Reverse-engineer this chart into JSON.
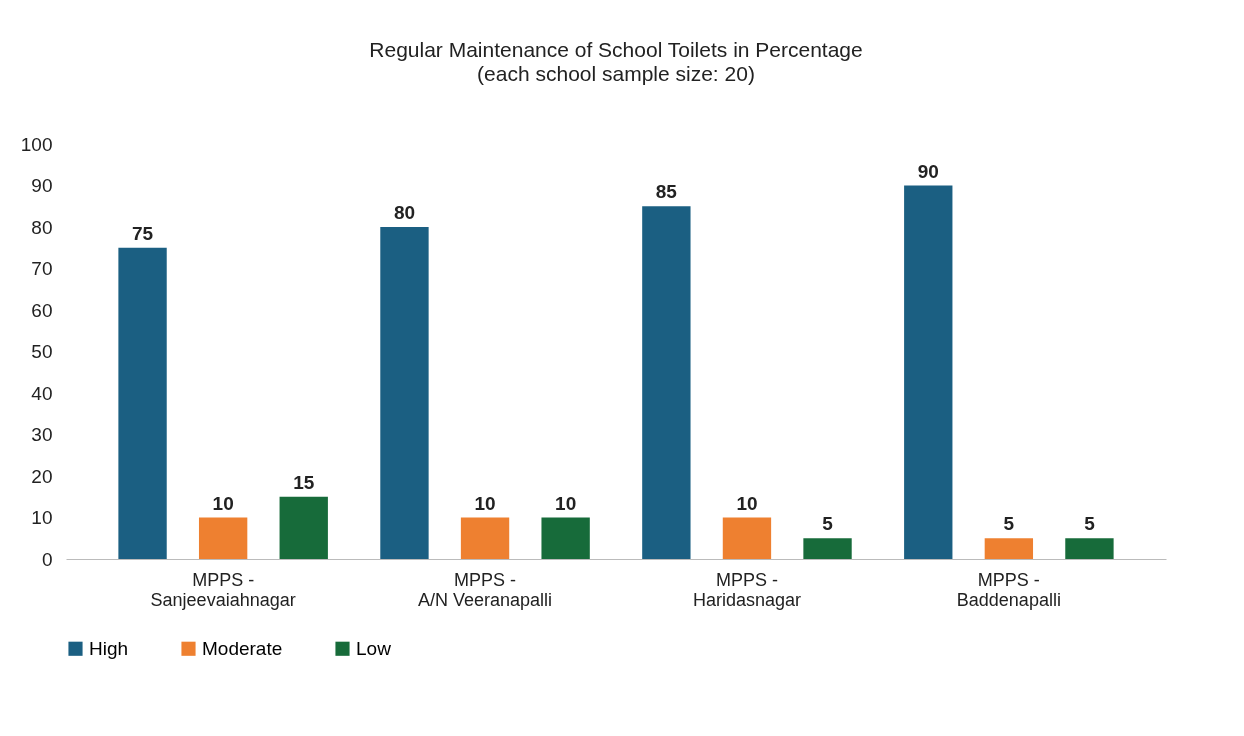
{
  "chart_data": {
    "type": "bar",
    "title": "Regular Maintenance of School Toilets in Percentage",
    "subtitle": "(each school sample size: 20)",
    "categories": [
      "MPPS -\nSanjeevaiahnagar",
      "MPPS -\nA/N Veeranapalli",
      "MPPS -\nHaridasnagar",
      "MPPS -\nBaddenapalli"
    ],
    "series": [
      {
        "name": "High",
        "color": "#1b5f82",
        "values": [
          75,
          80,
          85,
          90
        ]
      },
      {
        "name": "Moderate",
        "color": "#ee8030",
        "values": [
          10,
          10,
          10,
          5
        ]
      },
      {
        "name": "Low",
        "color": "#176b3a",
        "values": [
          15,
          10,
          5,
          5
        ]
      }
    ],
    "ylim": [
      0,
      100
    ],
    "yticks": [
      0,
      10,
      20,
      30,
      40,
      50,
      60,
      70,
      80,
      90,
      100
    ],
    "grid": false,
    "legend": "bottom",
    "data_labels": true
  }
}
